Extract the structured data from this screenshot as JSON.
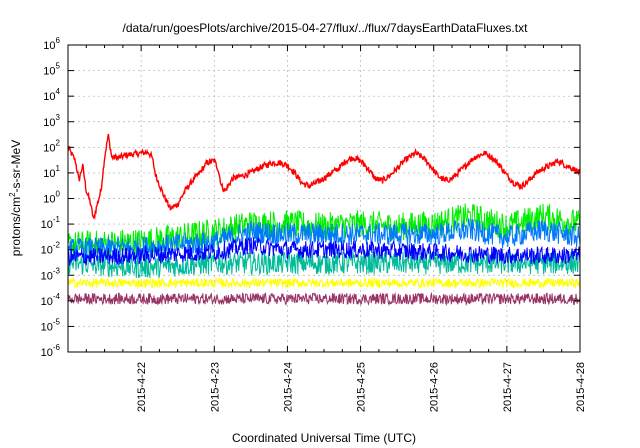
{
  "chart_data": {
    "type": "line",
    "title": "/data/run/goesPlots/archive/2015-04-27/flux/../flux/7daysEarthDataFluxes.txt",
    "xlabel": "Coordinated Universal Time (UTC)",
    "ylabel": {
      "base": "protons/cm",
      "sup": "2",
      "rest": "-s-sr-MeV"
    },
    "yscale": "log",
    "ylim_exp": [
      -6,
      6
    ],
    "y_ticks": [
      {
        "base": "10",
        "exp": "-6"
      },
      {
        "base": "10",
        "exp": "-5"
      },
      {
        "base": "10",
        "exp": "-4"
      },
      {
        "base": "10",
        "exp": "-3"
      },
      {
        "base": "10",
        "exp": "-2"
      },
      {
        "base": "10",
        "exp": "-1"
      },
      {
        "base": "10",
        "exp": "0"
      },
      {
        "base": "10",
        "exp": "1"
      },
      {
        "base": "10",
        "exp": "2"
      },
      {
        "base": "10",
        "exp": "3"
      },
      {
        "base": "10",
        "exp": "4"
      },
      {
        "base": "10",
        "exp": "5"
      },
      {
        "base": "10",
        "exp": "6"
      }
    ],
    "x_ticks": [
      "2015-4-22",
      "2015-4-23",
      "2015-4-24",
      "2015-4-25",
      "2015-4-26",
      "2015-4-27",
      "2015-4-28"
    ],
    "xlim": [
      "2015-4-21 00:00",
      "2015-4-28 00:00"
    ],
    "grid": "dashed",
    "series": [
      {
        "color": "#ff0000",
        "points": [
          [
            0.0,
            100
          ],
          [
            0.1,
            30
          ],
          [
            0.15,
            5
          ],
          [
            0.2,
            20
          ],
          [
            0.25,
            2
          ],
          [
            0.3,
            0.8
          ],
          [
            0.35,
            0.15
          ],
          [
            0.4,
            0.6
          ],
          [
            0.45,
            2
          ],
          [
            0.5,
            40
          ],
          [
            0.55,
            300
          ],
          [
            0.6,
            40
          ],
          [
            0.7,
            40
          ],
          [
            0.8,
            50
          ],
          [
            0.9,
            55
          ],
          [
            1.0,
            60
          ],
          [
            1.1,
            65
          ],
          [
            1.15,
            40
          ],
          [
            1.2,
            8
          ],
          [
            1.3,
            1.5
          ],
          [
            1.4,
            0.4
          ],
          [
            1.5,
            0.6
          ],
          [
            1.6,
            2
          ],
          [
            1.7,
            5
          ],
          [
            1.8,
            10
          ],
          [
            1.9,
            25
          ],
          [
            2.0,
            30
          ],
          [
            2.05,
            15
          ],
          [
            2.1,
            3
          ],
          [
            2.15,
            2
          ],
          [
            2.25,
            6
          ],
          [
            2.4,
            8
          ],
          [
            2.5,
            10
          ],
          [
            2.6,
            15
          ],
          [
            2.7,
            20
          ],
          [
            2.8,
            25
          ],
          [
            2.9,
            25
          ],
          [
            3.0,
            20
          ],
          [
            3.1,
            10
          ],
          [
            3.2,
            4
          ],
          [
            3.3,
            3
          ],
          [
            3.45,
            5
          ],
          [
            3.6,
            10
          ],
          [
            3.7,
            15
          ],
          [
            3.8,
            30
          ],
          [
            3.9,
            40
          ],
          [
            4.0,
            30
          ],
          [
            4.1,
            15
          ],
          [
            4.2,
            6
          ],
          [
            4.3,
            5
          ],
          [
            4.4,
            8
          ],
          [
            4.5,
            15
          ],
          [
            4.6,
            30
          ],
          [
            4.75,
            60
          ],
          [
            4.85,
            40
          ],
          [
            4.95,
            20
          ],
          [
            5.05,
            8
          ],
          [
            5.15,
            5
          ],
          [
            5.25,
            6
          ],
          [
            5.4,
            15
          ],
          [
            5.55,
            40
          ],
          [
            5.7,
            60
          ],
          [
            5.8,
            40
          ],
          [
            5.9,
            20
          ],
          [
            6.0,
            8
          ],
          [
            6.1,
            4
          ],
          [
            6.2,
            3
          ],
          [
            6.3,
            5
          ],
          [
            6.4,
            10
          ],
          [
            6.5,
            15
          ],
          [
            6.6,
            20
          ],
          [
            6.7,
            30
          ],
          [
            6.8,
            20
          ],
          [
            6.9,
            15
          ],
          [
            7.0,
            10
          ]
        ],
        "jitter": 0.12
      },
      {
        "color": "#00ee00",
        "points": [
          [
            0,
            0.015
          ],
          [
            1,
            0.02
          ],
          [
            1.5,
            0.03
          ],
          [
            2,
            0.05
          ],
          [
            2.5,
            0.1
          ],
          [
            3,
            0.1
          ],
          [
            3.5,
            0.08
          ],
          [
            4,
            0.1
          ],
          [
            4.5,
            0.08
          ],
          [
            5,
            0.1
          ],
          [
            5.5,
            0.2
          ],
          [
            6,
            0.08
          ],
          [
            6.5,
            0.2
          ],
          [
            7,
            0.1
          ]
        ],
        "jitter": 0.55
      },
      {
        "color": "#00bb99",
        "points": [
          [
            0,
            0.003
          ],
          [
            1,
            0.002
          ],
          [
            2,
            0.003
          ],
          [
            3,
            0.003
          ],
          [
            4,
            0.003
          ],
          [
            5,
            0.003
          ],
          [
            6,
            0.003
          ],
          [
            7,
            0.003
          ]
        ],
        "jitter": 0.45
      },
      {
        "color": "#0077ff",
        "points": [
          [
            0,
            0.01
          ],
          [
            1,
            0.012
          ],
          [
            2,
            0.02
          ],
          [
            2.5,
            0.05
          ],
          [
            3,
            0.04
          ],
          [
            4,
            0.04
          ],
          [
            5,
            0.04
          ],
          [
            5.5,
            0.06
          ],
          [
            6,
            0.03
          ],
          [
            6.5,
            0.06
          ],
          [
            7,
            0.03
          ]
        ],
        "jitter": 0.45
      },
      {
        "color": "#0000ff",
        "points": [
          [
            0,
            0.005
          ],
          [
            1,
            0.006
          ],
          [
            2,
            0.008
          ],
          [
            2.5,
            0.015
          ],
          [
            3,
            0.01
          ],
          [
            4,
            0.01
          ],
          [
            5,
            0.008
          ],
          [
            6,
            0.006
          ],
          [
            7,
            0.006
          ]
        ],
        "jitter": 0.35
      },
      {
        "color": "#ffff00",
        "points": [
          [
            0,
            0.0005
          ],
          [
            7,
            0.0005
          ]
        ],
        "jitter": 0.18
      },
      {
        "color": "#993366",
        "points": [
          [
            0,
            0.00012
          ],
          [
            7,
            0.00012
          ]
        ],
        "jitter": 0.22
      }
    ]
  }
}
